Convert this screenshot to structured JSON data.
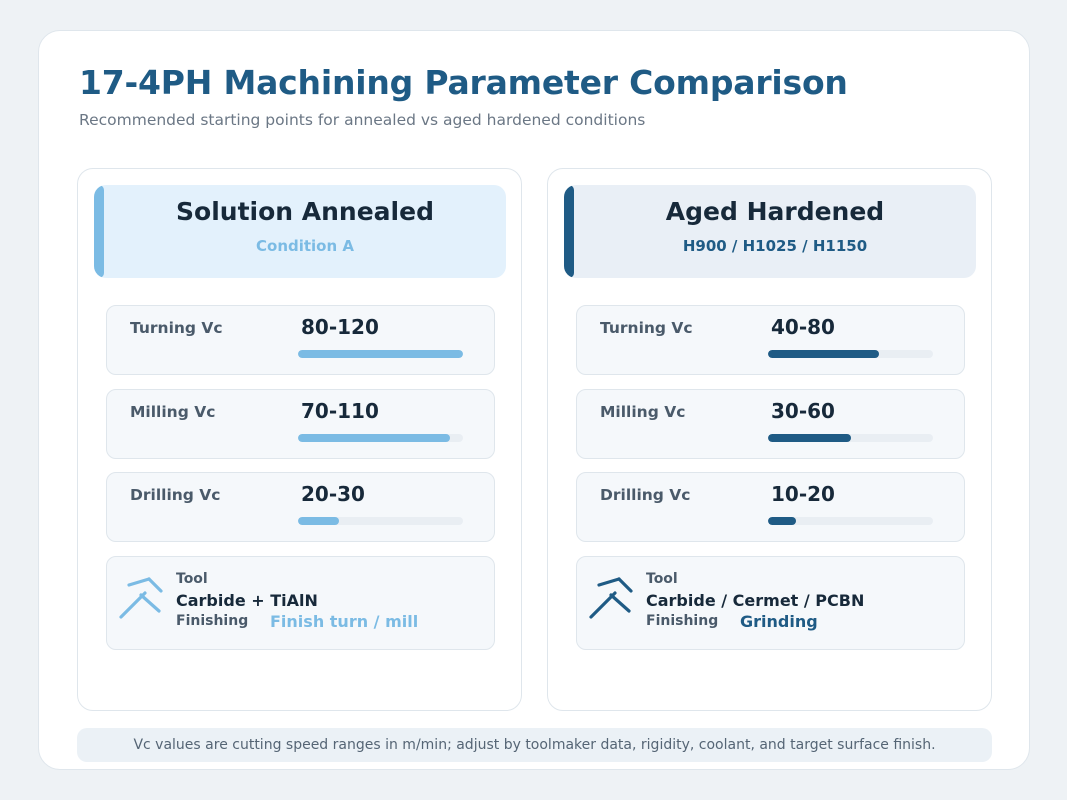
{
  "title": "17-4PH Machining Parameter Comparison",
  "subtitle": "Recommended starting points for annealed vs aged hardened conditions",
  "colors": {
    "light_accent": "#7bbbe4",
    "dark_accent": "#1f5b85"
  },
  "panels": [
    {
      "title": "Solution Annealed",
      "subtitle": "Condition A",
      "metrics": [
        {
          "label": "Turning Vc",
          "value": "80-120",
          "bar_fraction": 1.0
        },
        {
          "label": "Milling Vc",
          "value": "70-110",
          "bar_fraction": 0.92
        },
        {
          "label": "Drilling Vc",
          "value": "20-30",
          "bar_fraction": 0.25
        }
      ],
      "tool": {
        "icon": "tool-icon",
        "label": "Tool",
        "value": "Carbide + TiAlN",
        "finishing_label": "Finishing",
        "finishing_value": "Finish turn / mill"
      }
    },
    {
      "title": "Aged Hardened",
      "subtitle": "H900 / H1025 / H1150",
      "metrics": [
        {
          "label": "Turning Vc",
          "value": "40-80",
          "bar_fraction": 0.67
        },
        {
          "label": "Milling Vc",
          "value": "30-60",
          "bar_fraction": 0.5
        },
        {
          "label": "Drilling Vc",
          "value": "10-20",
          "bar_fraction": 0.17
        }
      ],
      "tool": {
        "icon": "tool-icon",
        "label": "Tool",
        "value": "Carbide / Cermet / PCBN",
        "finishing_label": "Finishing",
        "finishing_value": "Grinding"
      }
    }
  ],
  "footnote": "Vc values are cutting speed ranges in m/min; adjust by toolmaker data, rigidity, coolant, and target surface finish."
}
